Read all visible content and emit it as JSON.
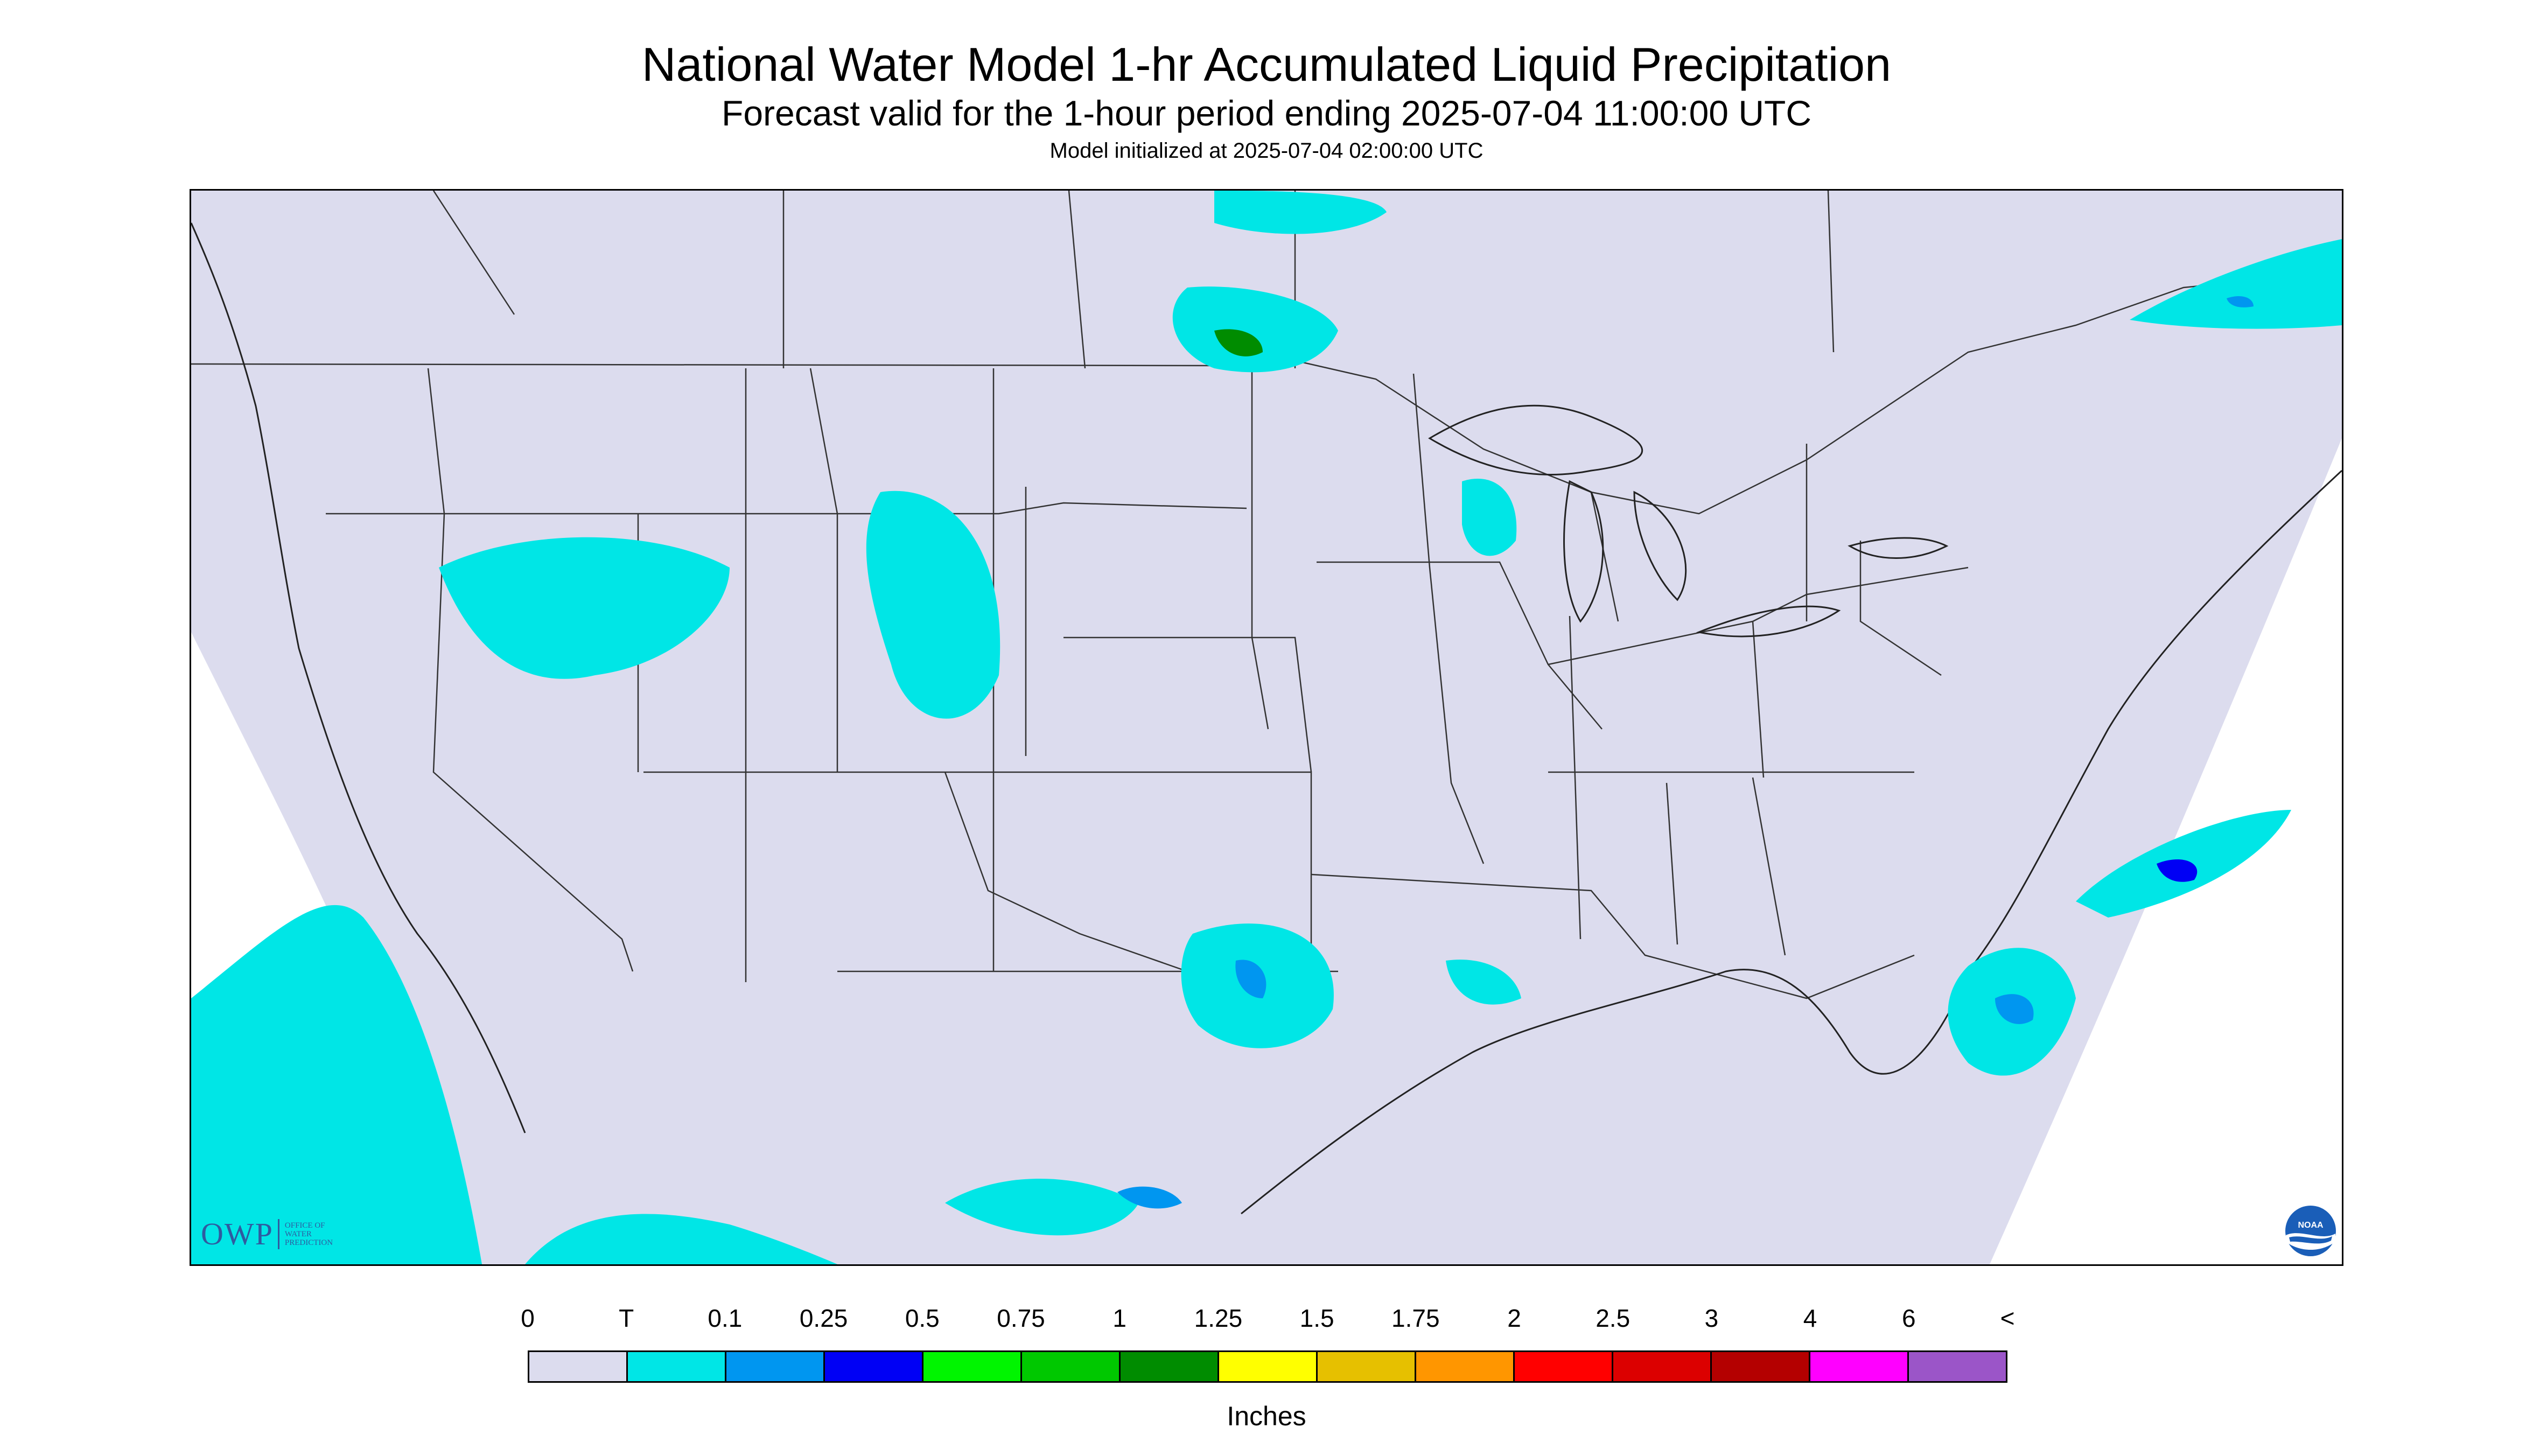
{
  "header": {
    "title": "National Water Model 1-hr Accumulated Liquid Precipitation",
    "subtitle": "Forecast valid for the 1-hour period ending 2025-07-04 11:00:00 UTC",
    "init_line": "Model initialized at 2025-07-04 02:00:00 UTC"
  },
  "logos": {
    "owp_letters": "OWP",
    "owp_office_lines": [
      "OFFICE OF",
      "WATER",
      "PREDICTION"
    ],
    "noaa_text": "NOAA"
  },
  "legend": {
    "tick_labels": [
      "0",
      "T",
      "0.1",
      "0.25",
      "0.5",
      "0.75",
      "1",
      "1.25",
      "1.5",
      "1.75",
      "2",
      "2.5",
      "3",
      "4",
      "6",
      "<"
    ],
    "colors": [
      "#dcdcee",
      "#00e6e6",
      "#0096f0",
      "#0000f5",
      "#00f500",
      "#00c800",
      "#008c00",
      "#ffff00",
      "#e6c000",
      "#ff9600",
      "#ff0000",
      "#dc0000",
      "#b40000",
      "#ff00ff",
      "#9b55c8"
    ],
    "units": "Inches"
  },
  "colors": {
    "map_background": "#dcdcee",
    "outside_domain": "#ffffff",
    "boundary_line": "#333333"
  }
}
